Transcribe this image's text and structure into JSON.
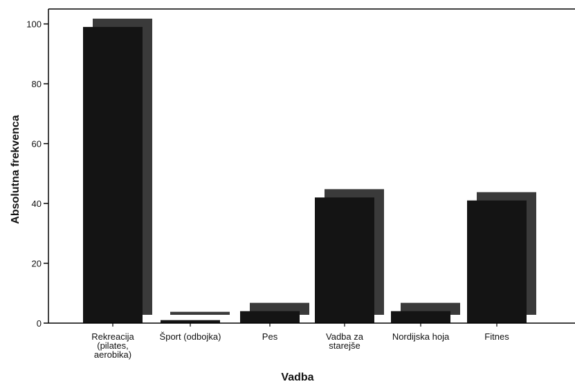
{
  "chart_data": {
    "type": "bar",
    "style": "3d-shadow",
    "categories": [
      [
        "Rekreacija",
        "(pilates,",
        "aerobika)"
      ],
      [
        "Šport (odbojka)"
      ],
      [
        "Pes"
      ],
      [
        "Vadba za",
        "starejše"
      ],
      [
        "Nordijska hoja"
      ],
      [
        "Fitnes"
      ]
    ],
    "values": [
      99,
      1,
      4,
      42,
      4,
      41
    ],
    "xlabel": "Vadba",
    "ylabel": "Absolutna frekvenca",
    "ylim": [
      0,
      105
    ],
    "yticks": [
      0,
      20,
      40,
      60,
      80,
      100
    ],
    "grid": false,
    "colors": {
      "bar_front": "#141414",
      "bar_shadow": "#3a3a3a",
      "axis": "#000000"
    }
  }
}
